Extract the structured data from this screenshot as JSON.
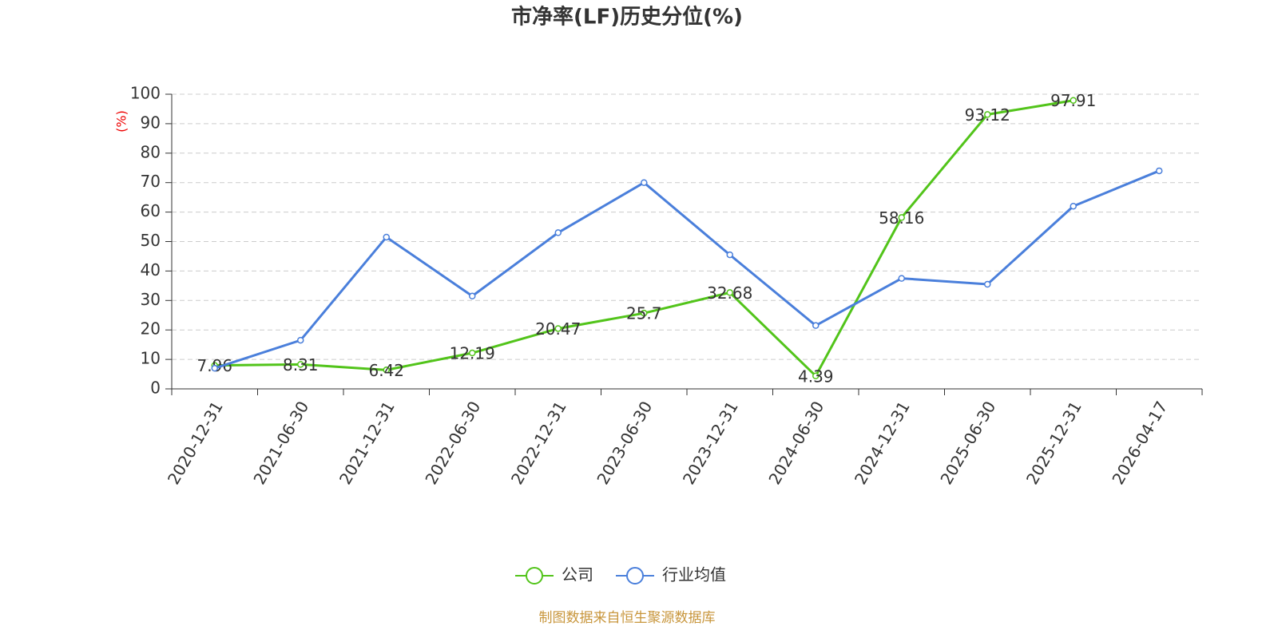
{
  "chart_data": {
    "type": "line",
    "title": "市净率(LF)历史分位(%)",
    "y_label": "(%)",
    "categories": [
      "2020-12-31",
      "2021-06-30",
      "2021-12-31",
      "2022-06-30",
      "2022-12-31",
      "2023-06-30",
      "2023-12-31",
      "2024-06-30",
      "2024-12-31",
      "2025-06-30",
      "2025-12-31",
      "2026-04-17"
    ],
    "series": [
      {
        "name": "公司",
        "color": "#52c41a",
        "values": [
          7.96,
          8.31,
          6.42,
          12.19,
          20.47,
          25.7,
          32.68,
          4.39,
          58.16,
          93.12,
          97.91,
          null
        ],
        "labels": true
      },
      {
        "name": "行业均值",
        "color": "#4a7fdb",
        "values": [
          7,
          16.5,
          51.5,
          31.5,
          53,
          70,
          45.5,
          21.5,
          37.5,
          35.5,
          62,
          74
        ],
        "labels": false
      }
    ],
    "ylim": [
      0,
      100
    ],
    "yticks": [
      0,
      10,
      20,
      30,
      40,
      50,
      60,
      70,
      80,
      90,
      100
    ],
    "grid": true,
    "legend": "bottom",
    "source": "制图数据来自恒生聚源数据库"
  }
}
